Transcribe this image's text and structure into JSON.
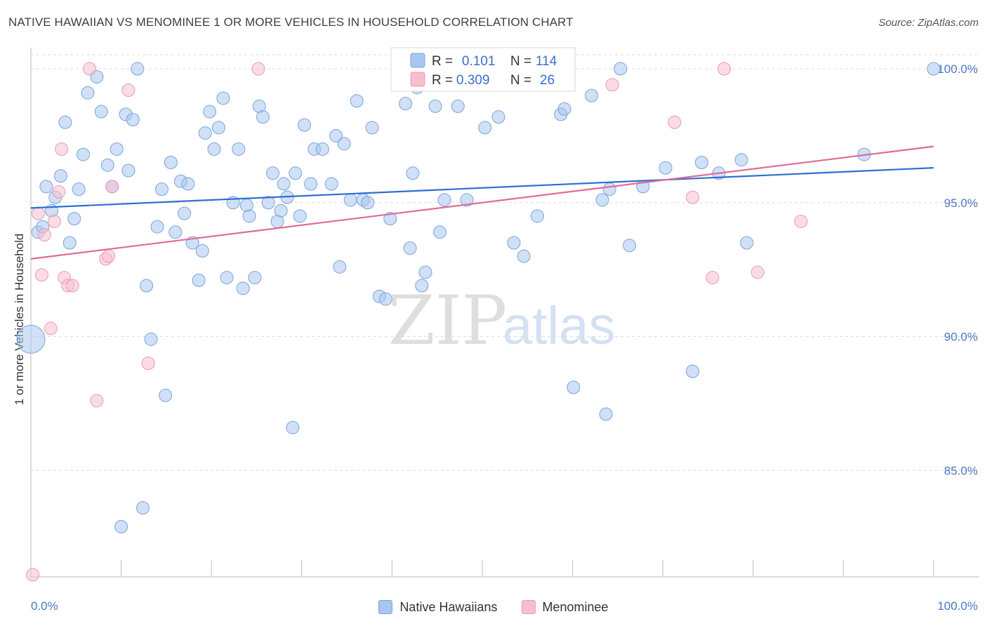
{
  "title": "NATIVE HAWAIIAN VS MENOMINEE 1 OR MORE VEHICLES IN HOUSEHOLD CORRELATION CHART",
  "source": "Source: ZipAtlas.com",
  "watermark": {
    "zip": "ZIP",
    "atlas": "atlas"
  },
  "colors": {
    "blue_fill": "#a9c6ee",
    "blue_stroke": "#7aa3dc",
    "blue_line": "#2f6fcf",
    "pink_fill": "#f6bfd0",
    "pink_stroke": "#ec98b4",
    "pink_line": "#e06b97",
    "axis_text": "#4a77c4",
    "grid": "#d9d9d9"
  },
  "legend_top": [
    {
      "r_label": "R =",
      "r_value": "0.101",
      "n_label": "N =",
      "n_value": "114"
    },
    {
      "r_label": "R =",
      "r_value": "0.309",
      "n_label": "N =",
      "n_value": "26"
    }
  ],
  "chart_data": {
    "type": "scatter",
    "title": "NATIVE HAWAIIAN VS MENOMINEE 1 OR MORE VEHICLES IN HOUSEHOLD CORRELATION CHART",
    "xlabel": "",
    "ylabel": "1 or more Vehicles in Household",
    "xlim": [
      0,
      100
    ],
    "ylim": [
      81,
      100.8
    ],
    "x_tick_labels": [
      "0.0%",
      "100.0%"
    ],
    "y_ticks": [
      85,
      90,
      95,
      100
    ],
    "y_tick_labels": [
      "85.0%",
      "90.0%",
      "95.0%",
      "100.0%"
    ],
    "grid": "horizontal dashed",
    "legend": "top-center and bottom",
    "series": [
      {
        "name": "Native Hawaiians",
        "color": "#a9c6ee",
        "trend": {
          "x": [
            0,
            100
          ],
          "y": [
            94.8,
            96.3
          ]
        },
        "points": [
          [
            0,
            89.9
          ],
          [
            0.8,
            93.9
          ],
          [
            1.3,
            94.1
          ],
          [
            1.7,
            95.6
          ],
          [
            2.3,
            94.7
          ],
          [
            2.7,
            95.2
          ],
          [
            3.3,
            96.0
          ],
          [
            3.8,
            98.0
          ],
          [
            4.3,
            93.5
          ],
          [
            4.8,
            94.4
          ],
          [
            5.3,
            95.5
          ],
          [
            5.8,
            96.8
          ],
          [
            6.3,
            99.1
          ],
          [
            7.3,
            99.7
          ],
          [
            7.8,
            98.4
          ],
          [
            8.5,
            96.4
          ],
          [
            9.0,
            95.6
          ],
          [
            9.5,
            97.0
          ],
          [
            10.0,
            82.9
          ],
          [
            10.5,
            98.3
          ],
          [
            10.8,
            96.2
          ],
          [
            11.3,
            98.1
          ],
          [
            11.8,
            100.0
          ],
          [
            12.4,
            83.6
          ],
          [
            12.8,
            91.9
          ],
          [
            13.3,
            89.9
          ],
          [
            14.0,
            94.1
          ],
          [
            14.5,
            95.5
          ],
          [
            14.9,
            87.8
          ],
          [
            15.5,
            96.5
          ],
          [
            16.0,
            93.9
          ],
          [
            16.6,
            95.8
          ],
          [
            17.0,
            94.6
          ],
          [
            17.4,
            95.7
          ],
          [
            17.9,
            93.5
          ],
          [
            18.6,
            92.1
          ],
          [
            19.0,
            93.2
          ],
          [
            19.3,
            97.6
          ],
          [
            19.8,
            98.4
          ],
          [
            20.3,
            97.0
          ],
          [
            20.8,
            97.8
          ],
          [
            21.3,
            98.9
          ],
          [
            21.7,
            92.2
          ],
          [
            22.4,
            95.0
          ],
          [
            23.0,
            97.0
          ],
          [
            23.5,
            91.8
          ],
          [
            23.9,
            94.9
          ],
          [
            24.2,
            94.5
          ],
          [
            24.8,
            92.2
          ],
          [
            25.3,
            98.6
          ],
          [
            25.7,
            98.2
          ],
          [
            26.3,
            95.0
          ],
          [
            26.8,
            96.1
          ],
          [
            27.3,
            94.3
          ],
          [
            27.7,
            94.7
          ],
          [
            28.0,
            95.7
          ],
          [
            28.4,
            95.2
          ],
          [
            29.0,
            86.6
          ],
          [
            29.3,
            96.1
          ],
          [
            29.8,
            94.5
          ],
          [
            30.3,
            97.9
          ],
          [
            31.0,
            95.7
          ],
          [
            31.4,
            97.0
          ],
          [
            32.3,
            97.0
          ],
          [
            33.3,
            95.7
          ],
          [
            33.8,
            97.5
          ],
          [
            34.2,
            92.6
          ],
          [
            34.7,
            97.2
          ],
          [
            35.4,
            95.1
          ],
          [
            36.1,
            98.8
          ],
          [
            36.8,
            95.1
          ],
          [
            37.3,
            95.0
          ],
          [
            37.8,
            97.8
          ],
          [
            38.6,
            91.5
          ],
          [
            39.3,
            91.4
          ],
          [
            39.8,
            94.4
          ],
          [
            41.0,
            100.0
          ],
          [
            41.5,
            98.7
          ],
          [
            42.0,
            93.3
          ],
          [
            42.3,
            96.1
          ],
          [
            42.8,
            99.3
          ],
          [
            43.3,
            91.9
          ],
          [
            43.7,
            92.4
          ],
          [
            44.8,
            98.6
          ],
          [
            45.3,
            93.9
          ],
          [
            45.8,
            95.1
          ],
          [
            47.3,
            98.6
          ],
          [
            48.3,
            95.1
          ],
          [
            50.3,
            97.8
          ],
          [
            51.8,
            98.2
          ],
          [
            53.5,
            93.5
          ],
          [
            54.6,
            93.0
          ],
          [
            56.1,
            94.5
          ],
          [
            58.3,
            100.0
          ],
          [
            58.7,
            98.3
          ],
          [
            59.1,
            98.5
          ],
          [
            60.1,
            88.1
          ],
          [
            62.1,
            99.0
          ],
          [
            63.3,
            95.1
          ],
          [
            63.7,
            87.1
          ],
          [
            64.1,
            95.5
          ],
          [
            65.3,
            100.0
          ],
          [
            66.3,
            93.4
          ],
          [
            67.8,
            95.6
          ],
          [
            70.3,
            96.3
          ],
          [
            73.3,
            88.7
          ],
          [
            74.3,
            96.5
          ],
          [
            76.2,
            96.1
          ],
          [
            78.7,
            96.6
          ],
          [
            79.3,
            93.5
          ],
          [
            92.3,
            96.8
          ],
          [
            100.0,
            100.0
          ]
        ]
      },
      {
        "name": "Menominee",
        "color": "#f6bfd0",
        "trend": {
          "x": [
            0,
            100
          ],
          "y": [
            92.9,
            97.1
          ]
        },
        "points": [
          [
            0.2,
            81.1
          ],
          [
            0.8,
            94.6
          ],
          [
            1.2,
            92.3
          ],
          [
            1.5,
            93.8
          ],
          [
            2.2,
            90.3
          ],
          [
            2.6,
            94.3
          ],
          [
            3.1,
            95.4
          ],
          [
            3.4,
            97.0
          ],
          [
            3.7,
            92.2
          ],
          [
            4.1,
            91.9
          ],
          [
            4.6,
            91.9
          ],
          [
            6.5,
            100.0
          ],
          [
            7.3,
            87.6
          ],
          [
            8.3,
            92.9
          ],
          [
            8.6,
            93.0
          ],
          [
            9.0,
            95.6
          ],
          [
            10.8,
            99.2
          ],
          [
            13.0,
            89.0
          ],
          [
            25.2,
            100.0
          ],
          [
            64.4,
            99.4
          ],
          [
            71.3,
            98.0
          ],
          [
            73.3,
            95.2
          ],
          [
            75.5,
            92.2
          ],
          [
            76.8,
            100.0
          ],
          [
            80.5,
            92.4
          ],
          [
            85.3,
            94.3
          ]
        ]
      }
    ]
  }
}
